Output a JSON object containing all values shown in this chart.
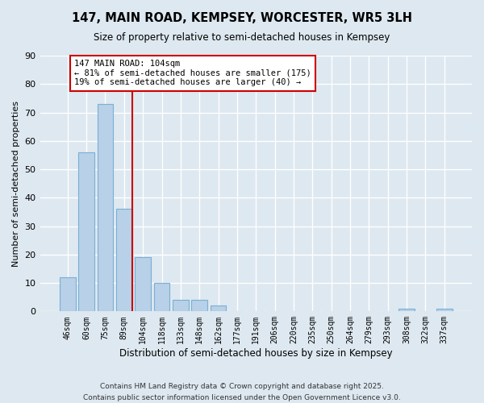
{
  "title": "147, MAIN ROAD, KEMPSEY, WORCESTER, WR5 3LH",
  "subtitle": "Size of property relative to semi-detached houses in Kempsey",
  "xlabel": "Distribution of semi-detached houses by size in Kempsey",
  "ylabel": "Number of semi-detached properties",
  "bar_labels": [
    "46sqm",
    "60sqm",
    "75sqm",
    "89sqm",
    "104sqm",
    "118sqm",
    "133sqm",
    "148sqm",
    "162sqm",
    "177sqm",
    "191sqm",
    "206sqm",
    "220sqm",
    "235sqm",
    "250sqm",
    "264sqm",
    "279sqm",
    "293sqm",
    "308sqm",
    "322sqm",
    "337sqm"
  ],
  "bar_values": [
    12,
    56,
    73,
    36,
    19,
    10,
    4,
    4,
    2,
    0,
    0,
    0,
    0,
    0,
    0,
    0,
    0,
    0,
    1,
    0,
    1
  ],
  "bar_color": "#b8d0e8",
  "bar_edge_color": "#7aafd4",
  "vline_index": 3,
  "annotation_title": "147 MAIN ROAD: 104sqm",
  "annotation_line1": "← 81% of semi-detached houses are smaller (175)",
  "annotation_line2": "19% of semi-detached houses are larger (40) →",
  "vline_color": "#cc0000",
  "ylim": [
    0,
    90
  ],
  "yticks": [
    0,
    10,
    20,
    30,
    40,
    50,
    60,
    70,
    80,
    90
  ],
  "background_color": "#dde8f0",
  "footer_line1": "Contains HM Land Registry data © Crown copyright and database right 2025.",
  "footer_line2": "Contains public sector information licensed under the Open Government Licence v3.0."
}
